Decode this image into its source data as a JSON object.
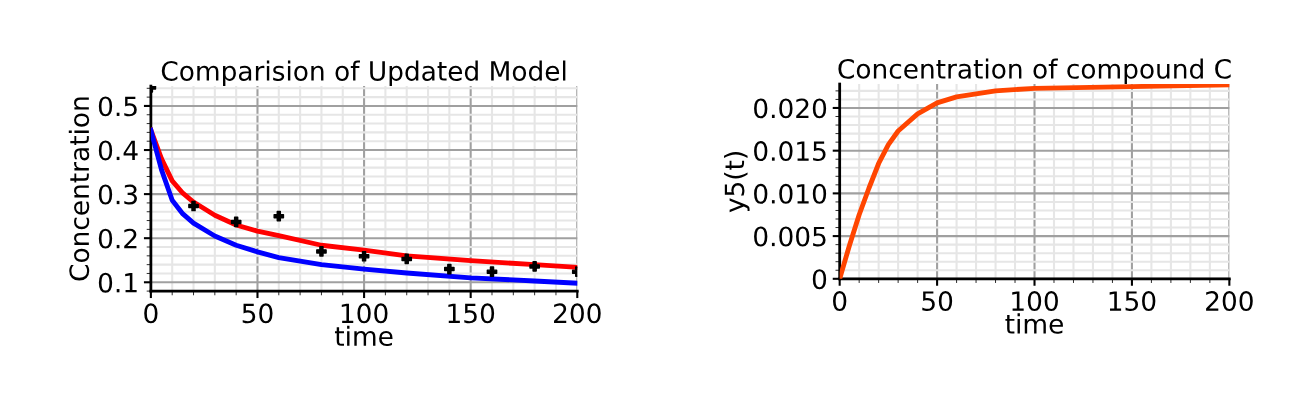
{
  "chart_data": [
    {
      "type": "line",
      "title": "Comparision of Updated Model",
      "xlabel": "time",
      "ylabel": "Concentration",
      "xlim": [
        0,
        200
      ],
      "ylim": [
        0.08,
        0.545
      ],
      "xticks": [
        0,
        50,
        100,
        150,
        200
      ],
      "yticks": [
        0.1,
        0.2,
        0.3,
        0.4,
        0.5
      ],
      "grid": true,
      "series": [
        {
          "color": "#ff0000",
          "x": [
            0,
            5,
            10,
            15,
            20,
            30,
            40,
            50,
            60,
            80,
            100,
            120,
            150,
            180,
            200
          ],
          "values": [
            0.445,
            0.38,
            0.33,
            0.302,
            0.282,
            0.252,
            0.23,
            0.216,
            0.206,
            0.184,
            0.173,
            0.16,
            0.149,
            0.14,
            0.134
          ]
        },
        {
          "color": "#0000ff",
          "x": [
            0,
            5,
            10,
            15,
            20,
            30,
            40,
            50,
            60,
            80,
            100,
            120,
            150,
            180,
            200
          ],
          "values": [
            0.445,
            0.355,
            0.286,
            0.255,
            0.234,
            0.205,
            0.184,
            0.169,
            0.156,
            0.14,
            0.13,
            0.121,
            0.11,
            0.103,
            0.098
          ]
        },
        {
          "type": "scatter",
          "color": "#000000",
          "marker": "cross",
          "x": [
            0,
            20,
            40,
            60,
            80,
            100,
            120,
            140,
            160,
            180,
            200
          ],
          "values": [
            0.542,
            0.273,
            0.237,
            0.25,
            0.17,
            0.159,
            0.153,
            0.13,
            0.124,
            0.136,
            0.124
          ]
        }
      ]
    },
    {
      "type": "line",
      "title": "Concentration of compound C",
      "xlabel": "time",
      "ylabel": "y5(t)",
      "xlim": [
        0,
        200
      ],
      "ylim": [
        0,
        0.0228
      ],
      "xticks": [
        0,
        50,
        100,
        150,
        200
      ],
      "yticks": [
        0,
        {
          "value": 0.005,
          "label": "0.005"
        },
        {
          "value": 0.01,
          "label": "0.010"
        },
        {
          "value": 0.015,
          "label": "0.015"
        },
        {
          "value": 0.02,
          "label": "0.020"
        }
      ],
      "grid": true,
      "series": [
        {
          "color": "#ff4500",
          "x": [
            0,
            5,
            10,
            15,
            20,
            25,
            30,
            40,
            50,
            60,
            80,
            100,
            150,
            200
          ],
          "values": [
            0,
            0.0039,
            0.0075,
            0.0106,
            0.0135,
            0.0157,
            0.0173,
            0.0193,
            0.0206,
            0.0213,
            0.022,
            0.0223,
            0.0225,
            0.0227
          ]
        }
      ]
    }
  ]
}
